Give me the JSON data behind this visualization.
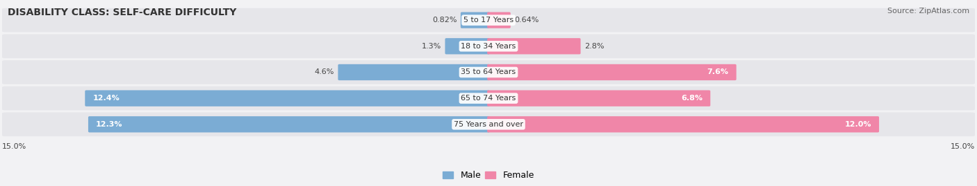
{
  "title": "DISABILITY CLASS: SELF-CARE DIFFICULTY",
  "source": "Source: ZipAtlas.com",
  "categories": [
    "5 to 17 Years",
    "18 to 34 Years",
    "35 to 64 Years",
    "65 to 74 Years",
    "75 Years and over"
  ],
  "male_values": [
    0.82,
    1.3,
    4.6,
    12.4,
    12.3
  ],
  "female_values": [
    0.64,
    2.8,
    7.6,
    6.8,
    12.0
  ],
  "male_labels": [
    "0.82%",
    "1.3%",
    "4.6%",
    "12.4%",
    "12.3%"
  ],
  "female_labels": [
    "0.64%",
    "2.8%",
    "7.6%",
    "6.8%",
    "12.0%"
  ],
  "male_color": "#7bacd4",
  "female_color": "#f086a8",
  "background_color": "#f2f2f4",
  "bar_bg_color": "#e6e6ea",
  "xlim": 15.0,
  "x_tick_label_left": "15.0%",
  "x_tick_label_right": "15.0%",
  "title_fontsize": 10,
  "source_fontsize": 8,
  "label_fontsize": 8,
  "category_fontsize": 8,
  "legend_fontsize": 9,
  "male_label_threshold": 5.0,
  "female_label_threshold": 5.0
}
